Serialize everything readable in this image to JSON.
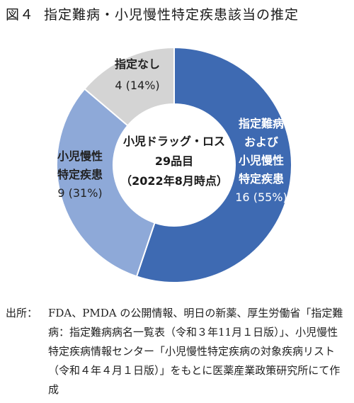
{
  "figure": {
    "number": "図４",
    "title": "指定難病・小児慢性特定疾患該当の推定"
  },
  "chart_data": {
    "type": "pie",
    "variant": "donut",
    "center_label": [
      "小児ドラッグ・ロス",
      "29品目",
      "（2022年8月時点）"
    ],
    "slices": [
      {
        "label_lines": [
          "指定難病",
          "および",
          "小児慢性",
          "特定疾患"
        ],
        "value_label": "16 (55%)",
        "value": 16,
        "percent": 55,
        "color": "#3e6ab2"
      },
      {
        "label_lines": [
          "小児慢性",
          "特定疾患"
        ],
        "value_label": "9 (31%)",
        "value": 9,
        "percent": 31,
        "color": "#8ea9d8"
      },
      {
        "label_lines": [
          "指定なし"
        ],
        "value_label": "4 (14%)",
        "value": 4,
        "percent": 14,
        "color": "#d4d4d4"
      }
    ],
    "total": 29
  },
  "source": {
    "label": "出所：",
    "text": "FDA、PMDA の公開情報、明日の新薬、厚生労働省「指定難病：指定難病病名一覧表（令和３年11月１日版）」、小児慢性特定疾病情報センター「小児慢性特定疾病の対象疾病リスト（令和４年４月１日版）」をもとに医薬産業政策研究所にて作成"
  }
}
